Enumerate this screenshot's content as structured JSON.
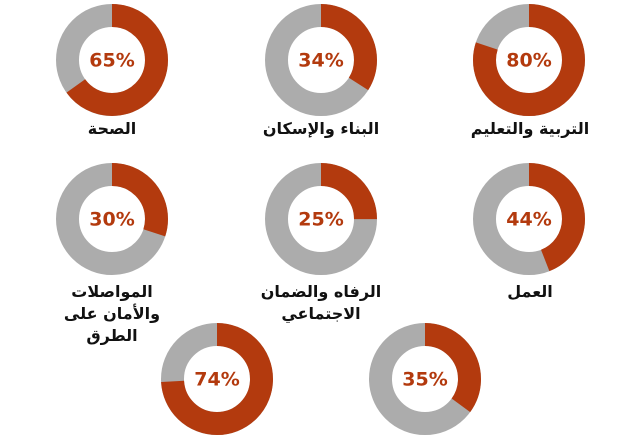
{
  "chart_data": {
    "type": "pie",
    "style": "donut",
    "colors": {
      "value": "#b33a0e",
      "remainder": "#acacac",
      "label": "#b33a0e",
      "text": "#111111"
    },
    "items": [
      {
        "category": "التربية والتعليم",
        "value": 80,
        "label": "80%"
      },
      {
        "category": "البناء والإسكان",
        "value": 34,
        "label": "34%"
      },
      {
        "category": "الصحة",
        "value": 65,
        "label": "65%"
      },
      {
        "category": "العمل",
        "value": 44,
        "label": "44%"
      },
      {
        "category": "الرفاه والضمان الاجتماعي",
        "value": 25,
        "label": "25%"
      },
      {
        "category": "المواصلات والأمان على الطرق",
        "value": 30,
        "label": "30%"
      },
      {
        "category": "",
        "value": 35,
        "label": "35%"
      },
      {
        "category": "",
        "value": 74,
        "label": "74%"
      }
    ]
  }
}
